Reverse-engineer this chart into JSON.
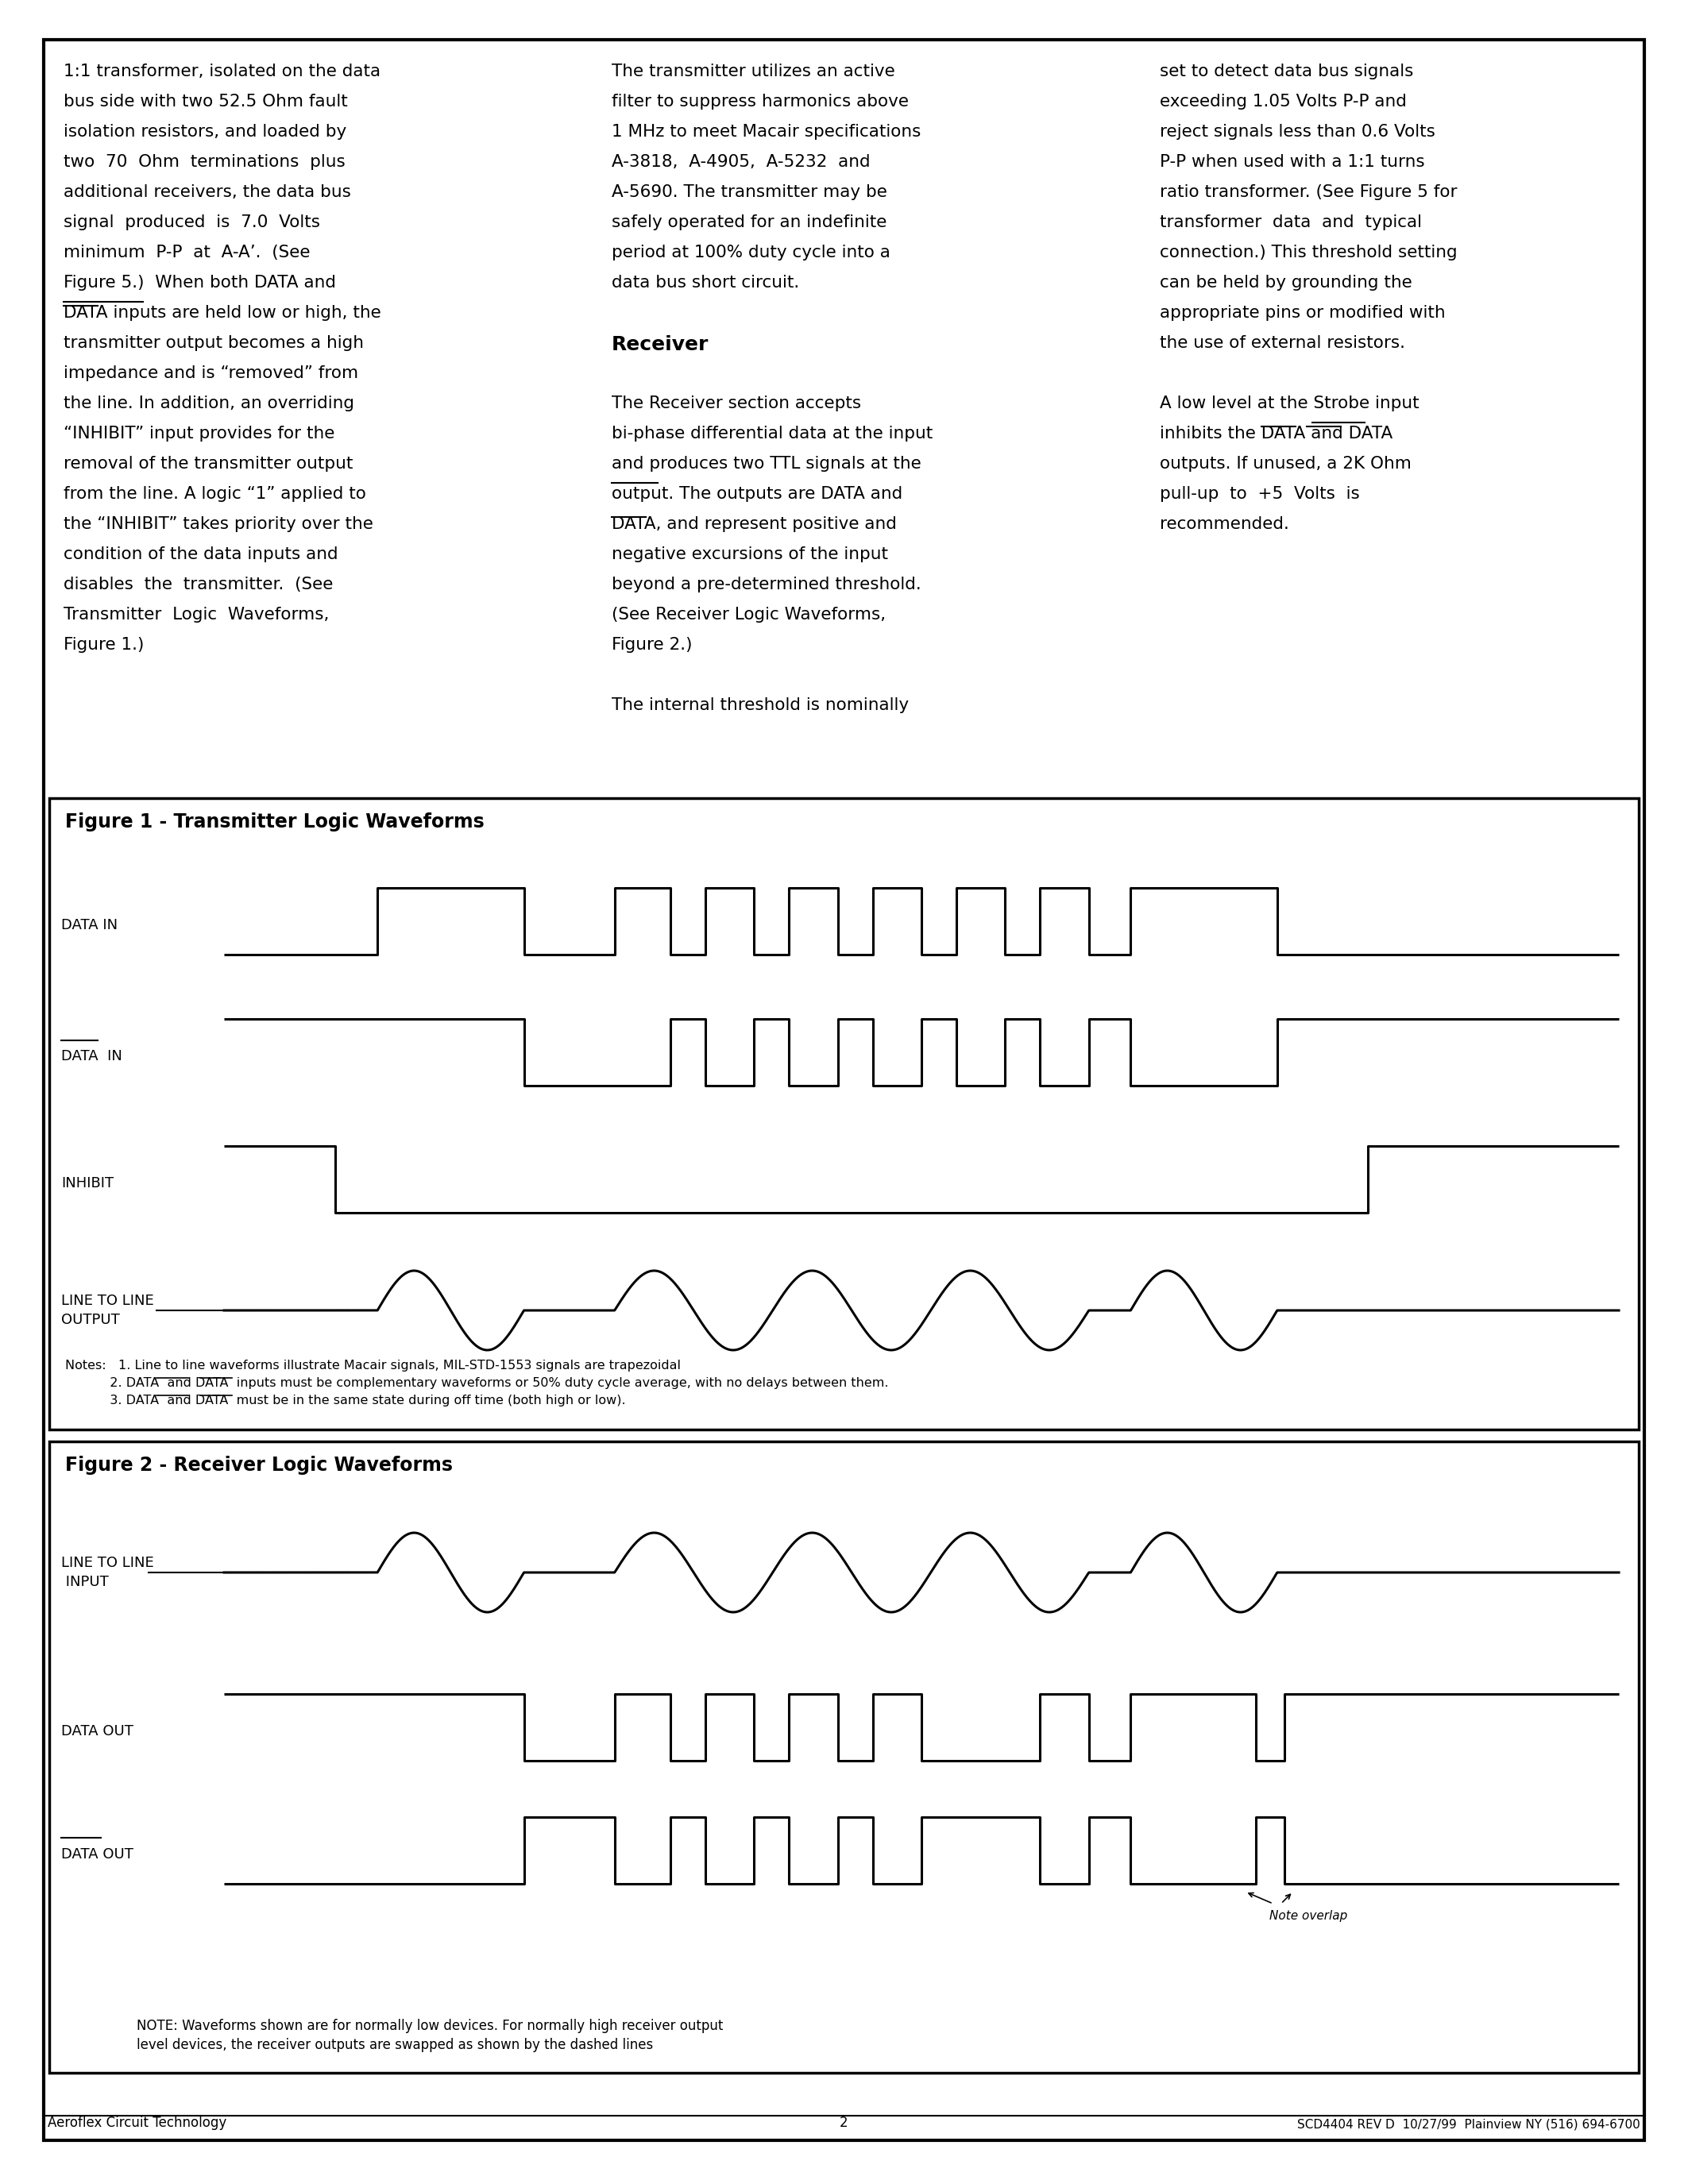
{
  "page_bg": "#ffffff",
  "fig1_title": "Figure 1 - Transmitter Logic Waveforms",
  "fig2_title": "Figure 2 - Receiver Logic Waveforms",
  "footer_left": "Aeroflex Circuit Technology",
  "footer_center": "2",
  "footer_right": "SCD4404 REV D  10/27/99  Plainview NY (516) 694-6700",
  "col1_lines": [
    "1:1 transformer, isolated on the data",
    "bus side with two 52.5 Ohm fault",
    "isolation resistors, and loaded by",
    "two  70  Ohm  terminations  plus",
    "additional receivers, the data bus",
    "signal  produced  is  7.0  Volts",
    "minimum  P-P  at  A-A’.  (See",
    "Figure 5.)  When both DATA and",
    "DATA inputs are held low or high, the",
    "transmitter output becomes a high",
    "impedance and is “removed” from",
    "the line. In addition, an overriding",
    "“INHIBIT” input provides for the",
    "removal of the transmitter output",
    "from the line. A logic “1” applied to",
    "the “INHIBIT” takes priority over the",
    "condition of the data inputs and",
    "disables  the  transmitter.  (See",
    "Transmitter  Logic  Waveforms,",
    "Figure 1.)"
  ],
  "col2_lines": [
    "The transmitter utilizes an active",
    "filter to suppress harmonics above",
    "1 MHz to meet Macair specifications",
    "A-3818,  A-4905,  A-5232  and",
    "A-5690. The transmitter may be",
    "safely operated for an indefinite",
    "period at 100% duty cycle into a",
    "data bus short circuit.",
    "",
    "Receiver",
    "",
    "The Receiver section accepts",
    "bi-phase differential data at the input",
    "and produces two TTL signals at the",
    "output. The outputs are DATA and",
    "DATA, and represent positive and",
    "negative excursions of the input",
    "beyond a pre-determined threshold.",
    "(See Receiver Logic Waveforms,",
    "Figure 2.)",
    "",
    "The internal threshold is nominally"
  ],
  "col3_lines": [
    "set to detect data bus signals",
    "exceeding 1.05 Volts P-P and",
    "reject signals less than 0.6 Volts",
    "P-P when used with a 1:1 turns",
    "ratio transformer. (See Figure 5 for",
    "transformer  data  and  typical",
    "connection.) This threshold setting",
    "can be held by grounding the",
    "appropriate pins or modified with",
    "the use of external resistors.",
    "",
    "A low level at the Strobe input",
    "inhibits the DATA and DATA",
    "outputs. If unused, a 2K Ohm",
    "pull-up  to  +5  Volts  is",
    "recommended."
  ],
  "fig1_notes": [
    "Notes:   1. Line to line waveforms illustrate Macair signals, MIL-STD-1553 signals are trapezoidal",
    "           2. DATA  and DATA  inputs must be complementary waveforms or 50% duty cycle average, with no delays between them.",
    "           3. DATA  and DATA  must be in the same state during off time (both high or low)."
  ],
  "fig2_note_line1": "NOTE: Waveforms shown are for normally low devices. For normally high receiver output",
  "fig2_note_line2": "level devices, the receiver outputs are swapped as shown by the dashed lines"
}
